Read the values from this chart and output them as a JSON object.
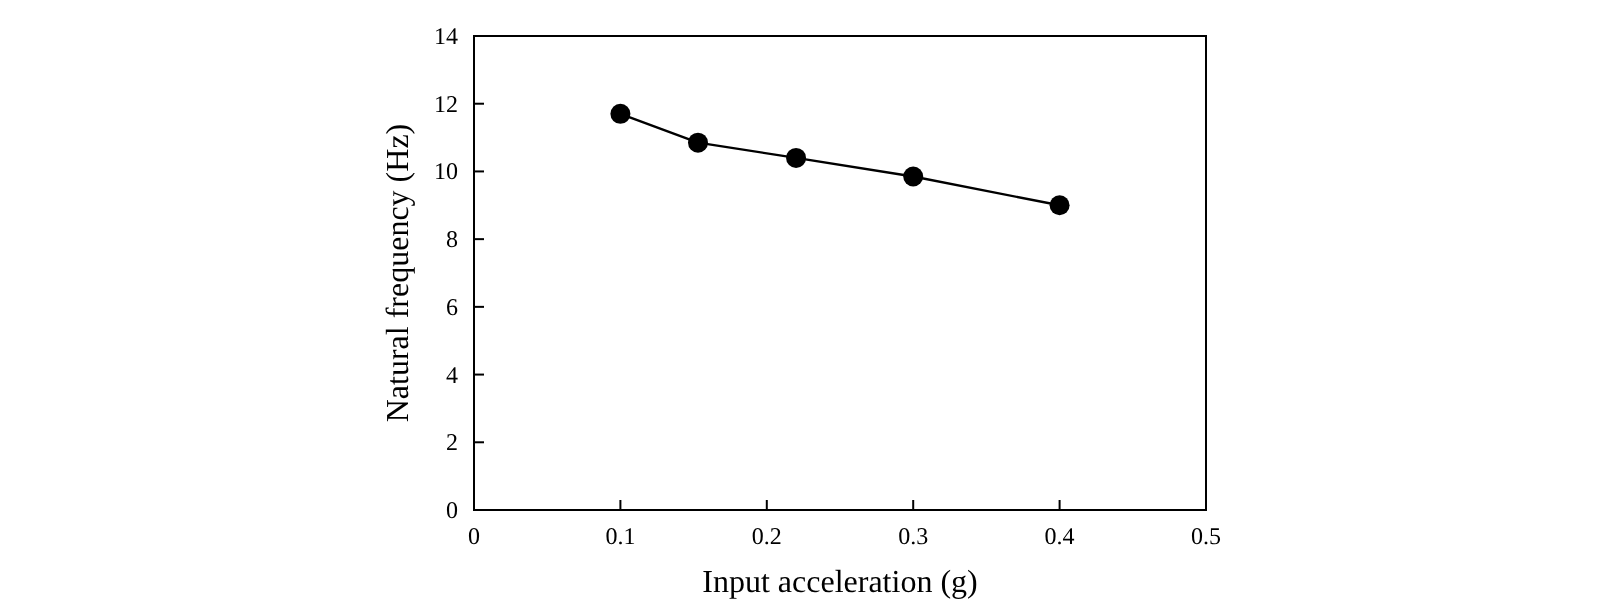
{
  "chart_data": {
    "type": "line",
    "xlabel": "Input acceleration (g)",
    "ylabel": "Natural frequency (Hz)",
    "x": [
      0.1,
      0.153,
      0.22,
      0.3,
      0.4
    ],
    "series": [
      {
        "color": "#000000",
        "values": [
          11.7,
          10.85,
          10.4,
          9.85,
          9.0
        ]
      }
    ],
    "xlim": [
      0,
      0.5
    ],
    "xticks": [
      0,
      0.1,
      0.2,
      0.3,
      0.4,
      0.5
    ],
    "ylim": [
      0,
      14
    ],
    "yticks": [
      0,
      2,
      4,
      6,
      8,
      10,
      12,
      14
    ],
    "marker": "circle",
    "line_style": "solid",
    "grid": false
  }
}
